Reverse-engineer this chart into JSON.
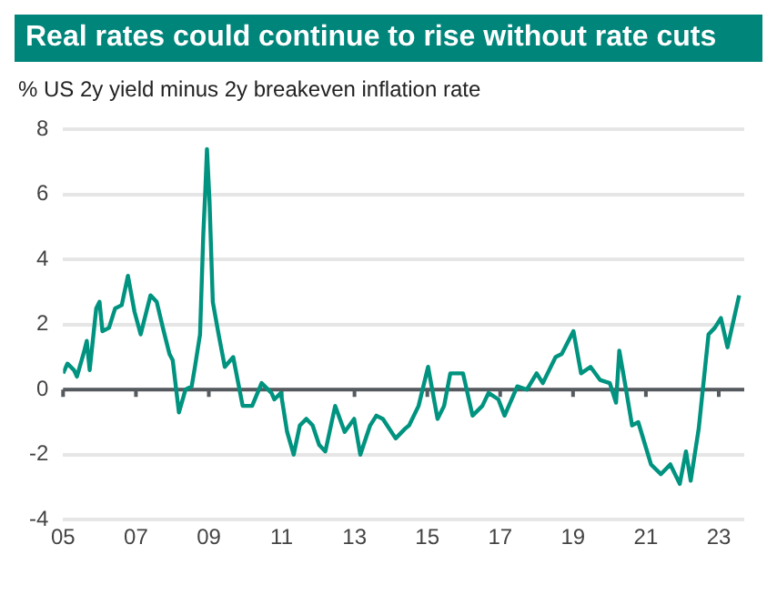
{
  "chart_data": {
    "type": "line",
    "title": "Real rates could continue to rise without rate cuts",
    "subtitle": "% US 2y yield minus 2y breakeven inflation rate",
    "x": [
      2005.0,
      2005.12,
      2005.3,
      2005.38,
      2005.56,
      2005.65,
      2005.73,
      2005.91,
      2006.0,
      2006.08,
      2006.26,
      2006.43,
      2006.61,
      2006.78,
      2006.96,
      2007.13,
      2007.4,
      2007.57,
      2007.74,
      2007.92,
      2008.01,
      2008.18,
      2008.36,
      2008.53,
      2008.62,
      2008.76,
      2008.85,
      2008.9,
      2008.95,
      2009.02,
      2009.11,
      2009.27,
      2009.44,
      2009.67,
      2009.93,
      2010.19,
      2010.45,
      2010.72,
      2010.8,
      2010.98,
      2011.15,
      2011.33,
      2011.5,
      2011.68,
      2011.85,
      2012.03,
      2012.2,
      2012.47,
      2012.73,
      2012.99,
      2013.16,
      2013.43,
      2013.6,
      2013.78,
      2014.13,
      2014.39,
      2014.5,
      2014.76,
      2015.02,
      2015.28,
      2015.46,
      2015.63,
      2015.98,
      2016.24,
      2016.51,
      2016.68,
      2016.95,
      2017.12,
      2017.47,
      2017.73,
      2018.0,
      2018.17,
      2018.52,
      2018.69,
      2019.01,
      2019.22,
      2019.48,
      2019.74,
      2020.01,
      2020.18,
      2020.27,
      2020.44,
      2020.62,
      2020.79,
      2021.14,
      2021.41,
      2021.67,
      2021.93,
      2022.1,
      2022.23,
      2022.45,
      2022.72,
      2022.89,
      2023.06,
      2023.24,
      2023.56
    ],
    "series": [
      {
        "color": "#00937f",
        "values": [
          0.5,
          0.8,
          0.6,
          0.4,
          1.1,
          1.5,
          0.6,
          2.5,
          2.7,
          1.8,
          1.9,
          2.5,
          2.6,
          3.5,
          2.4,
          1.7,
          2.9,
          2.7,
          1.9,
          1.1,
          0.9,
          -0.7,
          0,
          0.1,
          0.7,
          1.7,
          4.8,
          6.0,
          7.4,
          5.8,
          2.7,
          1.7,
          0.7,
          1.0,
          -0.5,
          -0.5,
          0.2,
          -0.1,
          -0.3,
          -0.1,
          -1.3,
          -2.0,
          -1.1,
          -0.9,
          -1.1,
          -1.7,
          -1.9,
          -0.5,
          -1.3,
          -0.9,
          -2.0,
          -1.1,
          -0.8,
          -0.9,
          -1.5,
          -1.2,
          -1.1,
          -0.5,
          0.7,
          -0.9,
          -0.5,
          0.5,
          0.5,
          -0.8,
          -0.5,
          -0.1,
          -0.3,
          -0.8,
          0.1,
          0,
          0.5,
          0.2,
          1.0,
          1.1,
          1.8,
          0.5,
          0.7,
          0.3,
          0.2,
          -0.4,
          1.2,
          0.1,
          -1.1,
          -1.0,
          -2.3,
          -2.6,
          -2.3,
          -2.9,
          -1.9,
          -2.8,
          -1.2,
          1.7,
          1.9,
          2.2,
          1.3,
          2.9
        ]
      }
    ],
    "xlim": [
      2005,
      2023.7
    ],
    "xticks": [
      {
        "value": 2005,
        "label": "05"
      },
      {
        "value": 2007,
        "label": "07"
      },
      {
        "value": 2009,
        "label": "09"
      },
      {
        "value": 2011,
        "label": "11"
      },
      {
        "value": 2013,
        "label": "13"
      },
      {
        "value": 2015,
        "label": "15"
      },
      {
        "value": 2017,
        "label": "17"
      },
      {
        "value": 2019,
        "label": "19"
      },
      {
        "value": 2021,
        "label": "21"
      },
      {
        "value": 2023,
        "label": "23"
      }
    ],
    "ylim": [
      -4,
      8
    ],
    "yticks": [
      -4,
      -2,
      0,
      2,
      4,
      6,
      8
    ],
    "ref_lines": [
      {
        "axis": "y",
        "value": 0,
        "color": "#555a5f"
      }
    ],
    "grid": "y",
    "legend": false,
    "marker": "none",
    "line_style": "solid"
  }
}
